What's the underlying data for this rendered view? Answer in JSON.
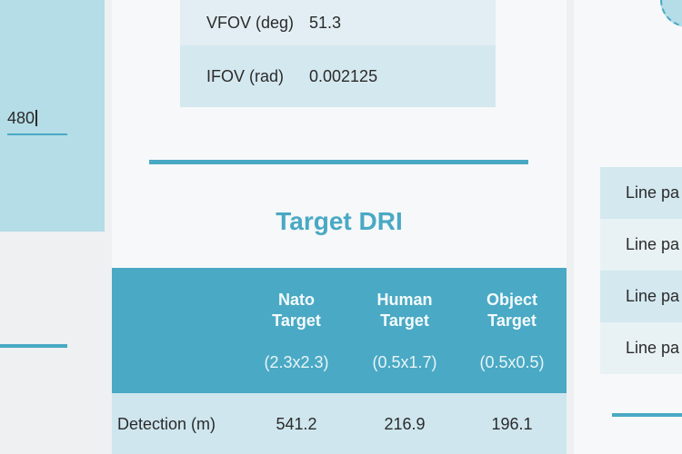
{
  "left_panel": {
    "input_value": "480"
  },
  "fov_table": {
    "rows": [
      {
        "label": "VFOV (deg)",
        "value": "51.3"
      },
      {
        "label": "IFOV (rad)",
        "value": "0.002125"
      }
    ]
  },
  "dri_section": {
    "title": "Target DRI",
    "columns": [
      {
        "name_line1": "Nato",
        "name_line2": "Target",
        "size": "(2.3x2.3)"
      },
      {
        "name_line1": "Human",
        "name_line2": "Target",
        "size": "(0.5x1.7)"
      },
      {
        "name_line1": "Object",
        "name_line2": "Target",
        "size": "(0.5x0.5)"
      }
    ],
    "rows": [
      {
        "label": "Detection (m)",
        "values": [
          "541.2",
          "216.9",
          "196.1"
        ]
      }
    ]
  },
  "right_panel": {
    "items": [
      "Line pa",
      "Line pa",
      "Line pa",
      "Line pa"
    ]
  },
  "colors": {
    "accent": "#49a9c4",
    "header_bg": "#4aa9c4",
    "row_tint": "#d4e8ef",
    "left_panel_bg": "#b4dde7"
  }
}
